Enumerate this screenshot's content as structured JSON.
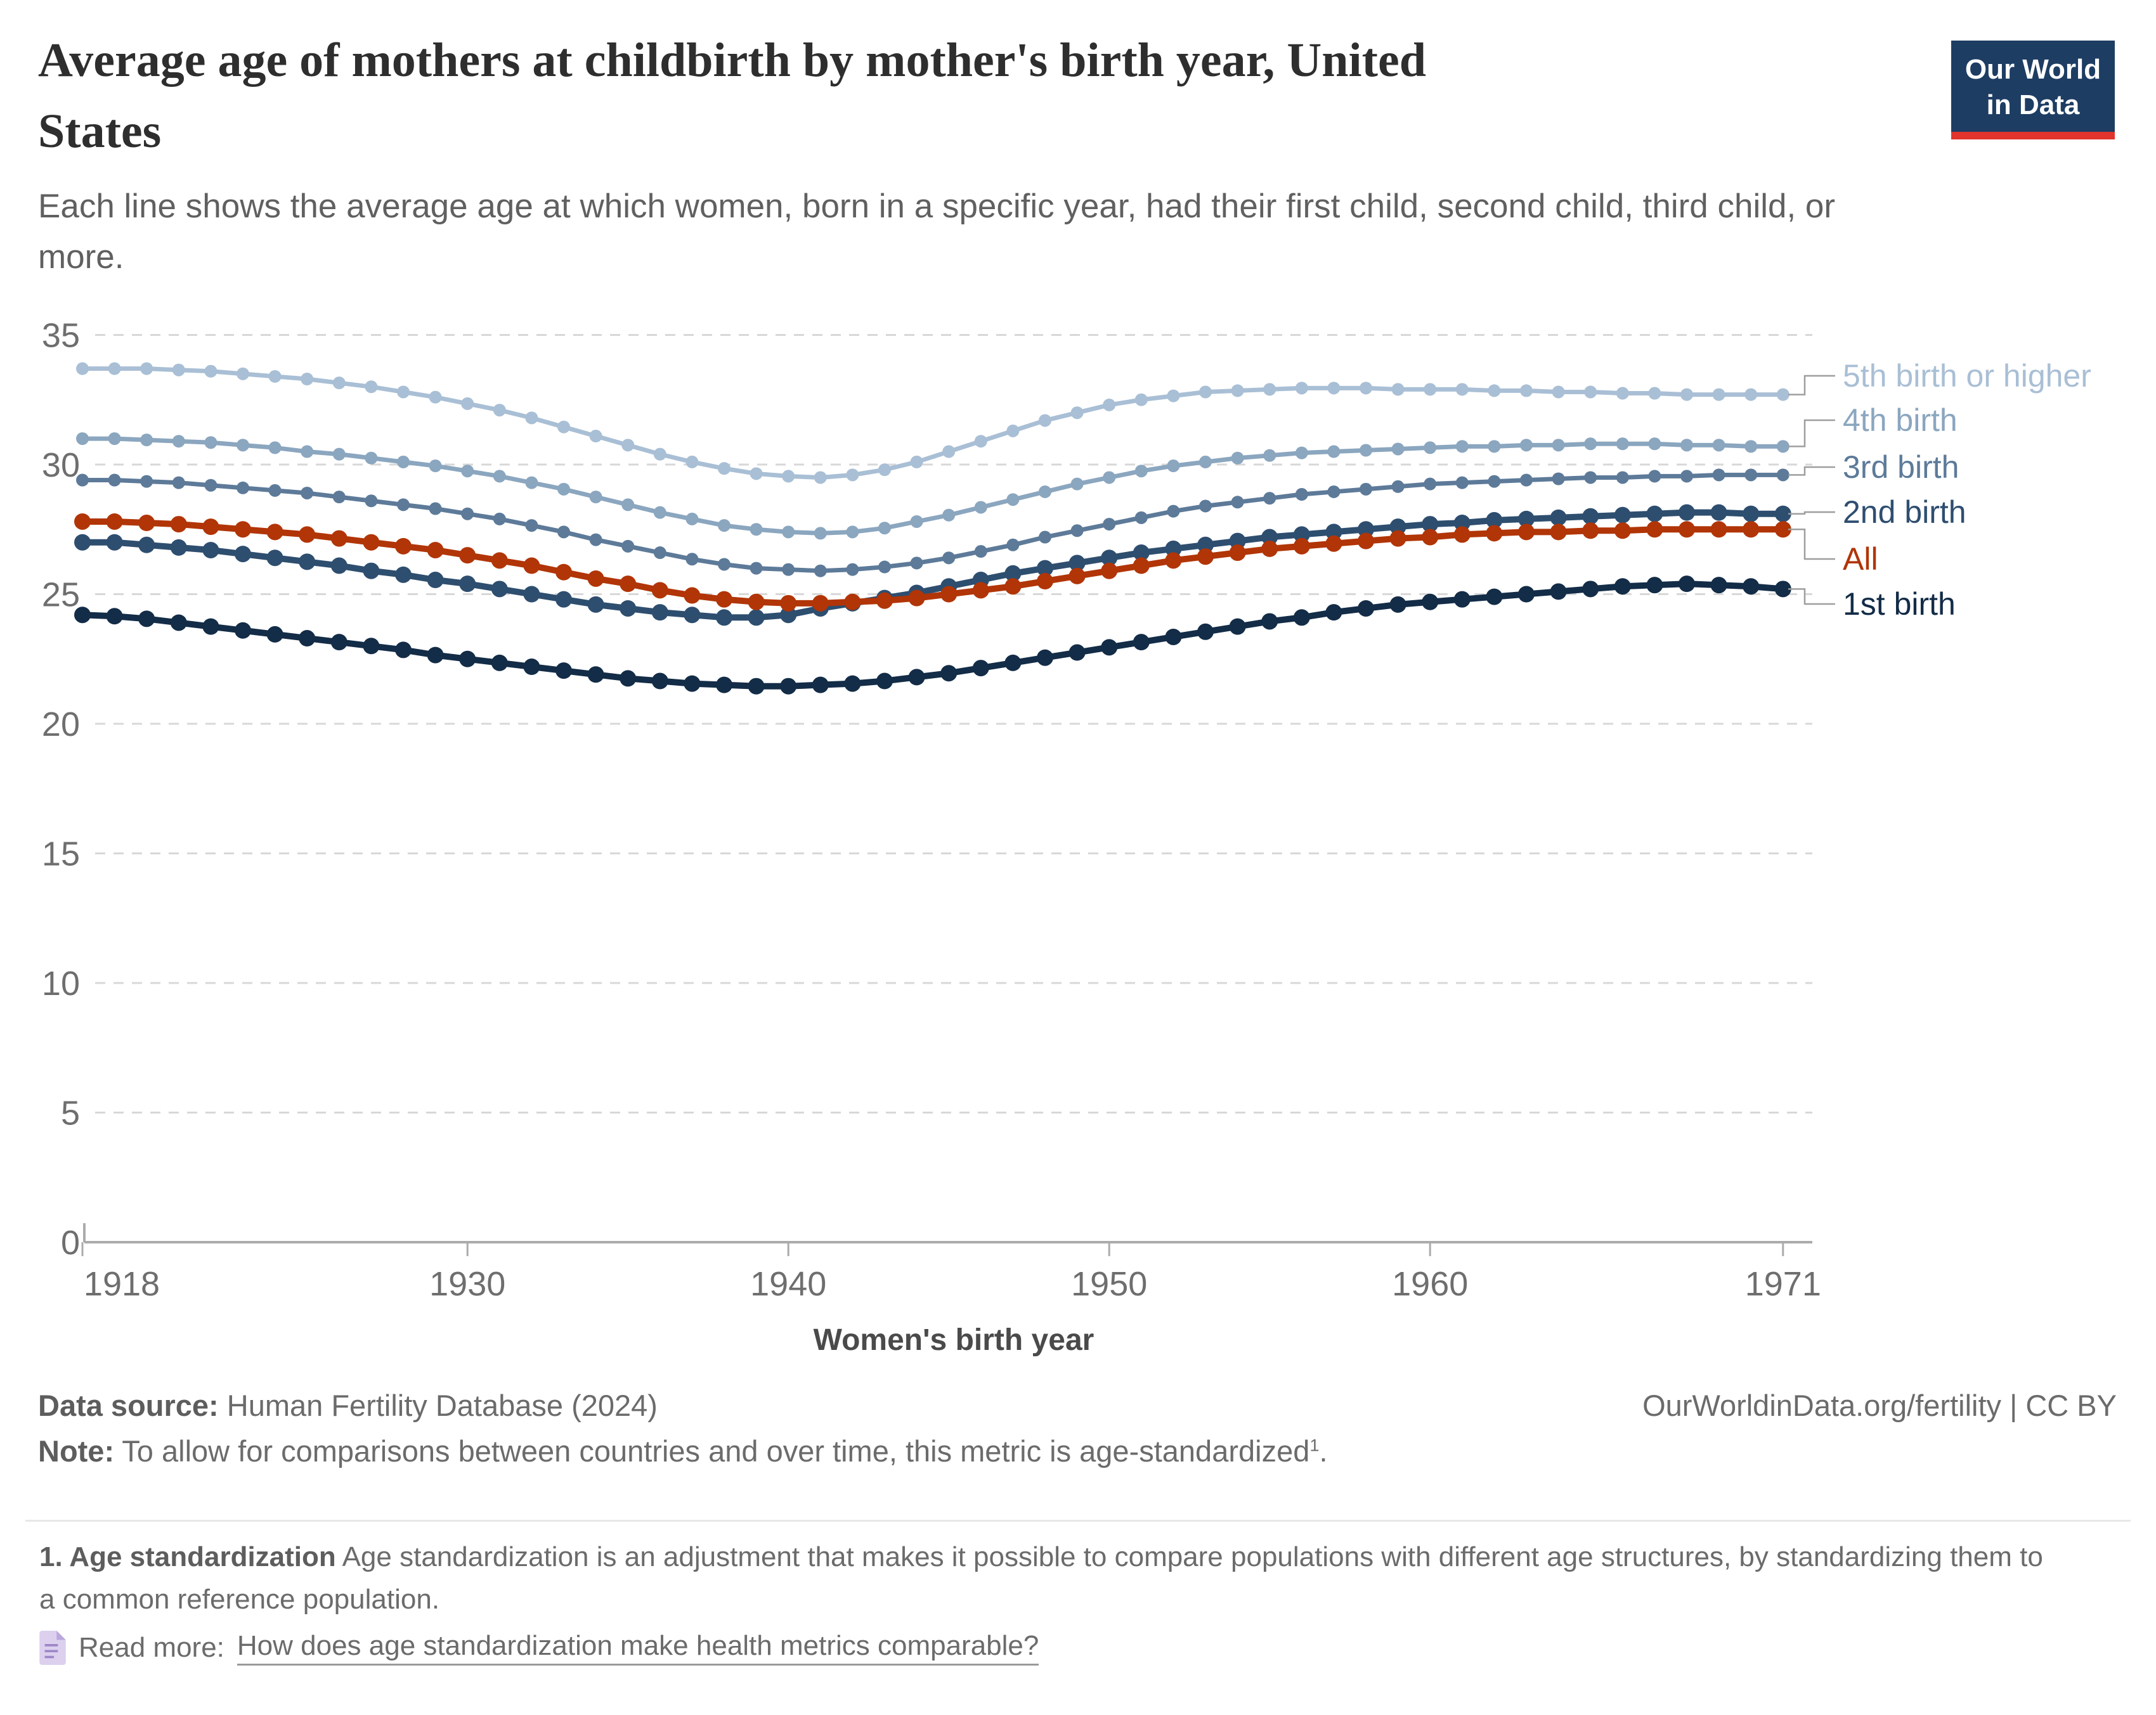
{
  "header": {
    "title_line1": "Average age of mothers at childbirth by mother's birth year, United",
    "title_line2": "States",
    "subtitle_line1": "Each line shows the average age at which women, born in a specific year, had their first child, second child, third child, or",
    "subtitle_line2": "more.",
    "logo_line1": "Our World",
    "logo_line2": "in Data"
  },
  "chart_data": {
    "type": "line",
    "title": "Average age of mothers at childbirth by mother's birth year, United States",
    "xlabel": "Women's birth year",
    "ylabel": "",
    "x_start": 1918,
    "x_end": 1971,
    "x_ticks": [
      1918,
      1930,
      1940,
      1950,
      1960,
      1971
    ],
    "y_ticks": [
      0,
      5,
      10,
      15,
      20,
      25,
      30,
      35
    ],
    "ylim": [
      0,
      35
    ],
    "grid": true,
    "legend_position": "right",
    "years": [
      1918,
      1919,
      1920,
      1921,
      1922,
      1923,
      1924,
      1925,
      1926,
      1927,
      1928,
      1929,
      1930,
      1931,
      1932,
      1933,
      1934,
      1935,
      1936,
      1937,
      1938,
      1939,
      1940,
      1941,
      1942,
      1943,
      1944,
      1945,
      1946,
      1947,
      1948,
      1949,
      1950,
      1951,
      1952,
      1953,
      1954,
      1955,
      1956,
      1957,
      1958,
      1959,
      1960,
      1961,
      1962,
      1963,
      1964,
      1965,
      1966,
      1967,
      1968,
      1969,
      1970,
      1971
    ],
    "series": [
      {
        "name": "5th birth or higher",
        "color": "#A9BFD5",
        "emphasis": false,
        "values": [
          33.7,
          33.7,
          33.7,
          33.65,
          33.6,
          33.5,
          33.4,
          33.3,
          33.15,
          33.0,
          32.8,
          32.6,
          32.35,
          32.1,
          31.8,
          31.45,
          31.1,
          30.75,
          30.4,
          30.1,
          29.85,
          29.65,
          29.55,
          29.5,
          29.6,
          29.8,
          30.1,
          30.5,
          30.9,
          31.3,
          31.7,
          32.0,
          32.3,
          32.5,
          32.65,
          32.8,
          32.85,
          32.9,
          32.95,
          32.95,
          32.95,
          32.9,
          32.9,
          32.9,
          32.85,
          32.85,
          32.8,
          32.8,
          32.75,
          32.75,
          32.7,
          32.7,
          32.7,
          32.7
        ]
      },
      {
        "name": "4th birth",
        "color": "#8BA6BF",
        "emphasis": false,
        "values": [
          31.0,
          31.0,
          30.95,
          30.9,
          30.85,
          30.75,
          30.65,
          30.5,
          30.4,
          30.25,
          30.1,
          29.95,
          29.75,
          29.55,
          29.3,
          29.05,
          28.75,
          28.45,
          28.15,
          27.9,
          27.65,
          27.5,
          27.4,
          27.35,
          27.4,
          27.55,
          27.8,
          28.05,
          28.35,
          28.65,
          28.95,
          29.25,
          29.5,
          29.75,
          29.95,
          30.1,
          30.25,
          30.35,
          30.45,
          30.5,
          30.55,
          30.6,
          30.65,
          30.7,
          30.7,
          30.75,
          30.75,
          30.8,
          30.8,
          30.8,
          30.75,
          30.75,
          30.7,
          30.7
        ]
      },
      {
        "name": "3rd birth",
        "color": "#5D7A99",
        "emphasis": false,
        "values": [
          29.4,
          29.4,
          29.35,
          29.3,
          29.2,
          29.1,
          29.0,
          28.9,
          28.75,
          28.6,
          28.45,
          28.3,
          28.1,
          27.9,
          27.65,
          27.4,
          27.1,
          26.85,
          26.6,
          26.35,
          26.15,
          26.0,
          25.95,
          25.9,
          25.95,
          26.05,
          26.2,
          26.4,
          26.65,
          26.9,
          27.2,
          27.45,
          27.7,
          27.95,
          28.2,
          28.4,
          28.55,
          28.7,
          28.85,
          28.95,
          29.05,
          29.15,
          29.25,
          29.3,
          29.35,
          29.4,
          29.45,
          29.5,
          29.5,
          29.55,
          29.55,
          29.6,
          29.6,
          29.6
        ]
      },
      {
        "name": "2nd birth",
        "color": "#2E4E6F",
        "emphasis": true,
        "values": [
          27.0,
          27.0,
          26.9,
          26.8,
          26.7,
          26.55,
          26.4,
          26.25,
          26.1,
          25.9,
          25.75,
          25.55,
          25.4,
          25.2,
          25.0,
          24.8,
          24.6,
          24.45,
          24.3,
          24.2,
          24.1,
          24.1,
          24.2,
          24.45,
          24.65,
          24.85,
          25.05,
          25.3,
          25.55,
          25.8,
          26.0,
          26.2,
          26.4,
          26.6,
          26.75,
          26.9,
          27.05,
          27.2,
          27.3,
          27.4,
          27.5,
          27.6,
          27.7,
          27.75,
          27.85,
          27.9,
          27.95,
          28.0,
          28.05,
          28.1,
          28.15,
          28.15,
          28.1,
          28.1
        ]
      },
      {
        "name": "All",
        "color": "#B13507",
        "emphasis": true,
        "values": [
          27.8,
          27.8,
          27.75,
          27.7,
          27.6,
          27.5,
          27.4,
          27.3,
          27.15,
          27.0,
          26.85,
          26.7,
          26.5,
          26.3,
          26.1,
          25.85,
          25.6,
          25.4,
          25.15,
          24.95,
          24.8,
          24.7,
          24.65,
          24.65,
          24.7,
          24.75,
          24.85,
          25.0,
          25.15,
          25.3,
          25.5,
          25.7,
          25.9,
          26.1,
          26.3,
          26.45,
          26.6,
          26.75,
          26.85,
          26.95,
          27.05,
          27.15,
          27.2,
          27.3,
          27.35,
          27.4,
          27.4,
          27.45,
          27.45,
          27.5,
          27.5,
          27.5,
          27.5,
          27.5
        ]
      },
      {
        "name": "1st birth",
        "color": "#132C47",
        "emphasis": true,
        "values": [
          24.2,
          24.15,
          24.05,
          23.9,
          23.75,
          23.6,
          23.45,
          23.3,
          23.15,
          23.0,
          22.85,
          22.65,
          22.5,
          22.35,
          22.2,
          22.05,
          21.9,
          21.75,
          21.65,
          21.55,
          21.5,
          21.45,
          21.45,
          21.5,
          21.55,
          21.65,
          21.8,
          21.95,
          22.15,
          22.35,
          22.55,
          22.75,
          22.95,
          23.15,
          23.35,
          23.55,
          23.75,
          23.95,
          24.1,
          24.3,
          24.45,
          24.6,
          24.7,
          24.8,
          24.9,
          25.0,
          25.1,
          25.2,
          25.3,
          25.35,
          25.4,
          25.35,
          25.3,
          25.2
        ]
      }
    ]
  },
  "footer": {
    "source_label": "Data source:",
    "source_value": " Human Fertility Database (2024)",
    "attribution": "OurWorldinData.org/fertility | CC BY",
    "note_label": "Note:",
    "note_value": " To allow for comparisons between countries and over time, this metric is age-standardized",
    "note_sup": "1",
    "note_end": "."
  },
  "footnote": {
    "bold": "1. Age standardization",
    "text": " Age standardization is an adjustment that makes it possible to compare populations with different age structures, by standardizing them to a common reference population.",
    "readmore_label": "Read more: ",
    "readmore_link": "How does age standardization make health metrics comparable?"
  },
  "colors": {
    "accent_red": "#B13507",
    "logo_bg": "#1D3D63",
    "logo_bar": "#E0342C",
    "gridline": "#D8D8D8",
    "axis": "#ABABAB",
    "tick_label": "#6E6E6E",
    "connector": "#9E9E9E"
  }
}
